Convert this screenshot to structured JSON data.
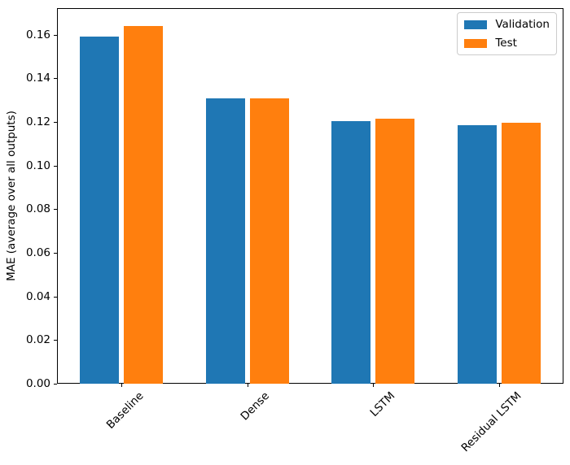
{
  "figure": {
    "background": "#ffffff"
  },
  "chart_data": {
    "type": "bar",
    "title": "",
    "xlabel": "",
    "ylabel": "MAE (average over all outputs)",
    "categories": [
      "Baseline",
      "Dense",
      "LSTM",
      "Residual LSTM"
    ],
    "series": [
      {
        "name": "Validation",
        "color": "#1f77b4",
        "values": [
          0.159,
          0.131,
          0.1205,
          0.1185
        ]
      },
      {
        "name": "Test",
        "color": "#ff7f0e",
        "values": [
          0.164,
          0.131,
          0.1215,
          0.1195
        ]
      }
    ],
    "ylim": [
      0,
      0.1722
    ],
    "xlim": [
      -0.51,
      3.51
    ],
    "yticks": [
      0,
      0.02,
      0.04,
      0.06,
      0.08,
      0.1,
      0.12,
      0.14,
      0.16
    ],
    "ytick_labels": [
      "0.00",
      "0.02",
      "0.04",
      "0.06",
      "0.08",
      "0.10",
      "0.12",
      "0.14",
      "0.16"
    ],
    "bar_width": 0.31,
    "bar_offset": 0.175,
    "xtick_rotation_deg": 45,
    "grid": false,
    "legend": {
      "position": "upper right",
      "labels": [
        "Validation",
        "Test"
      ]
    }
  }
}
